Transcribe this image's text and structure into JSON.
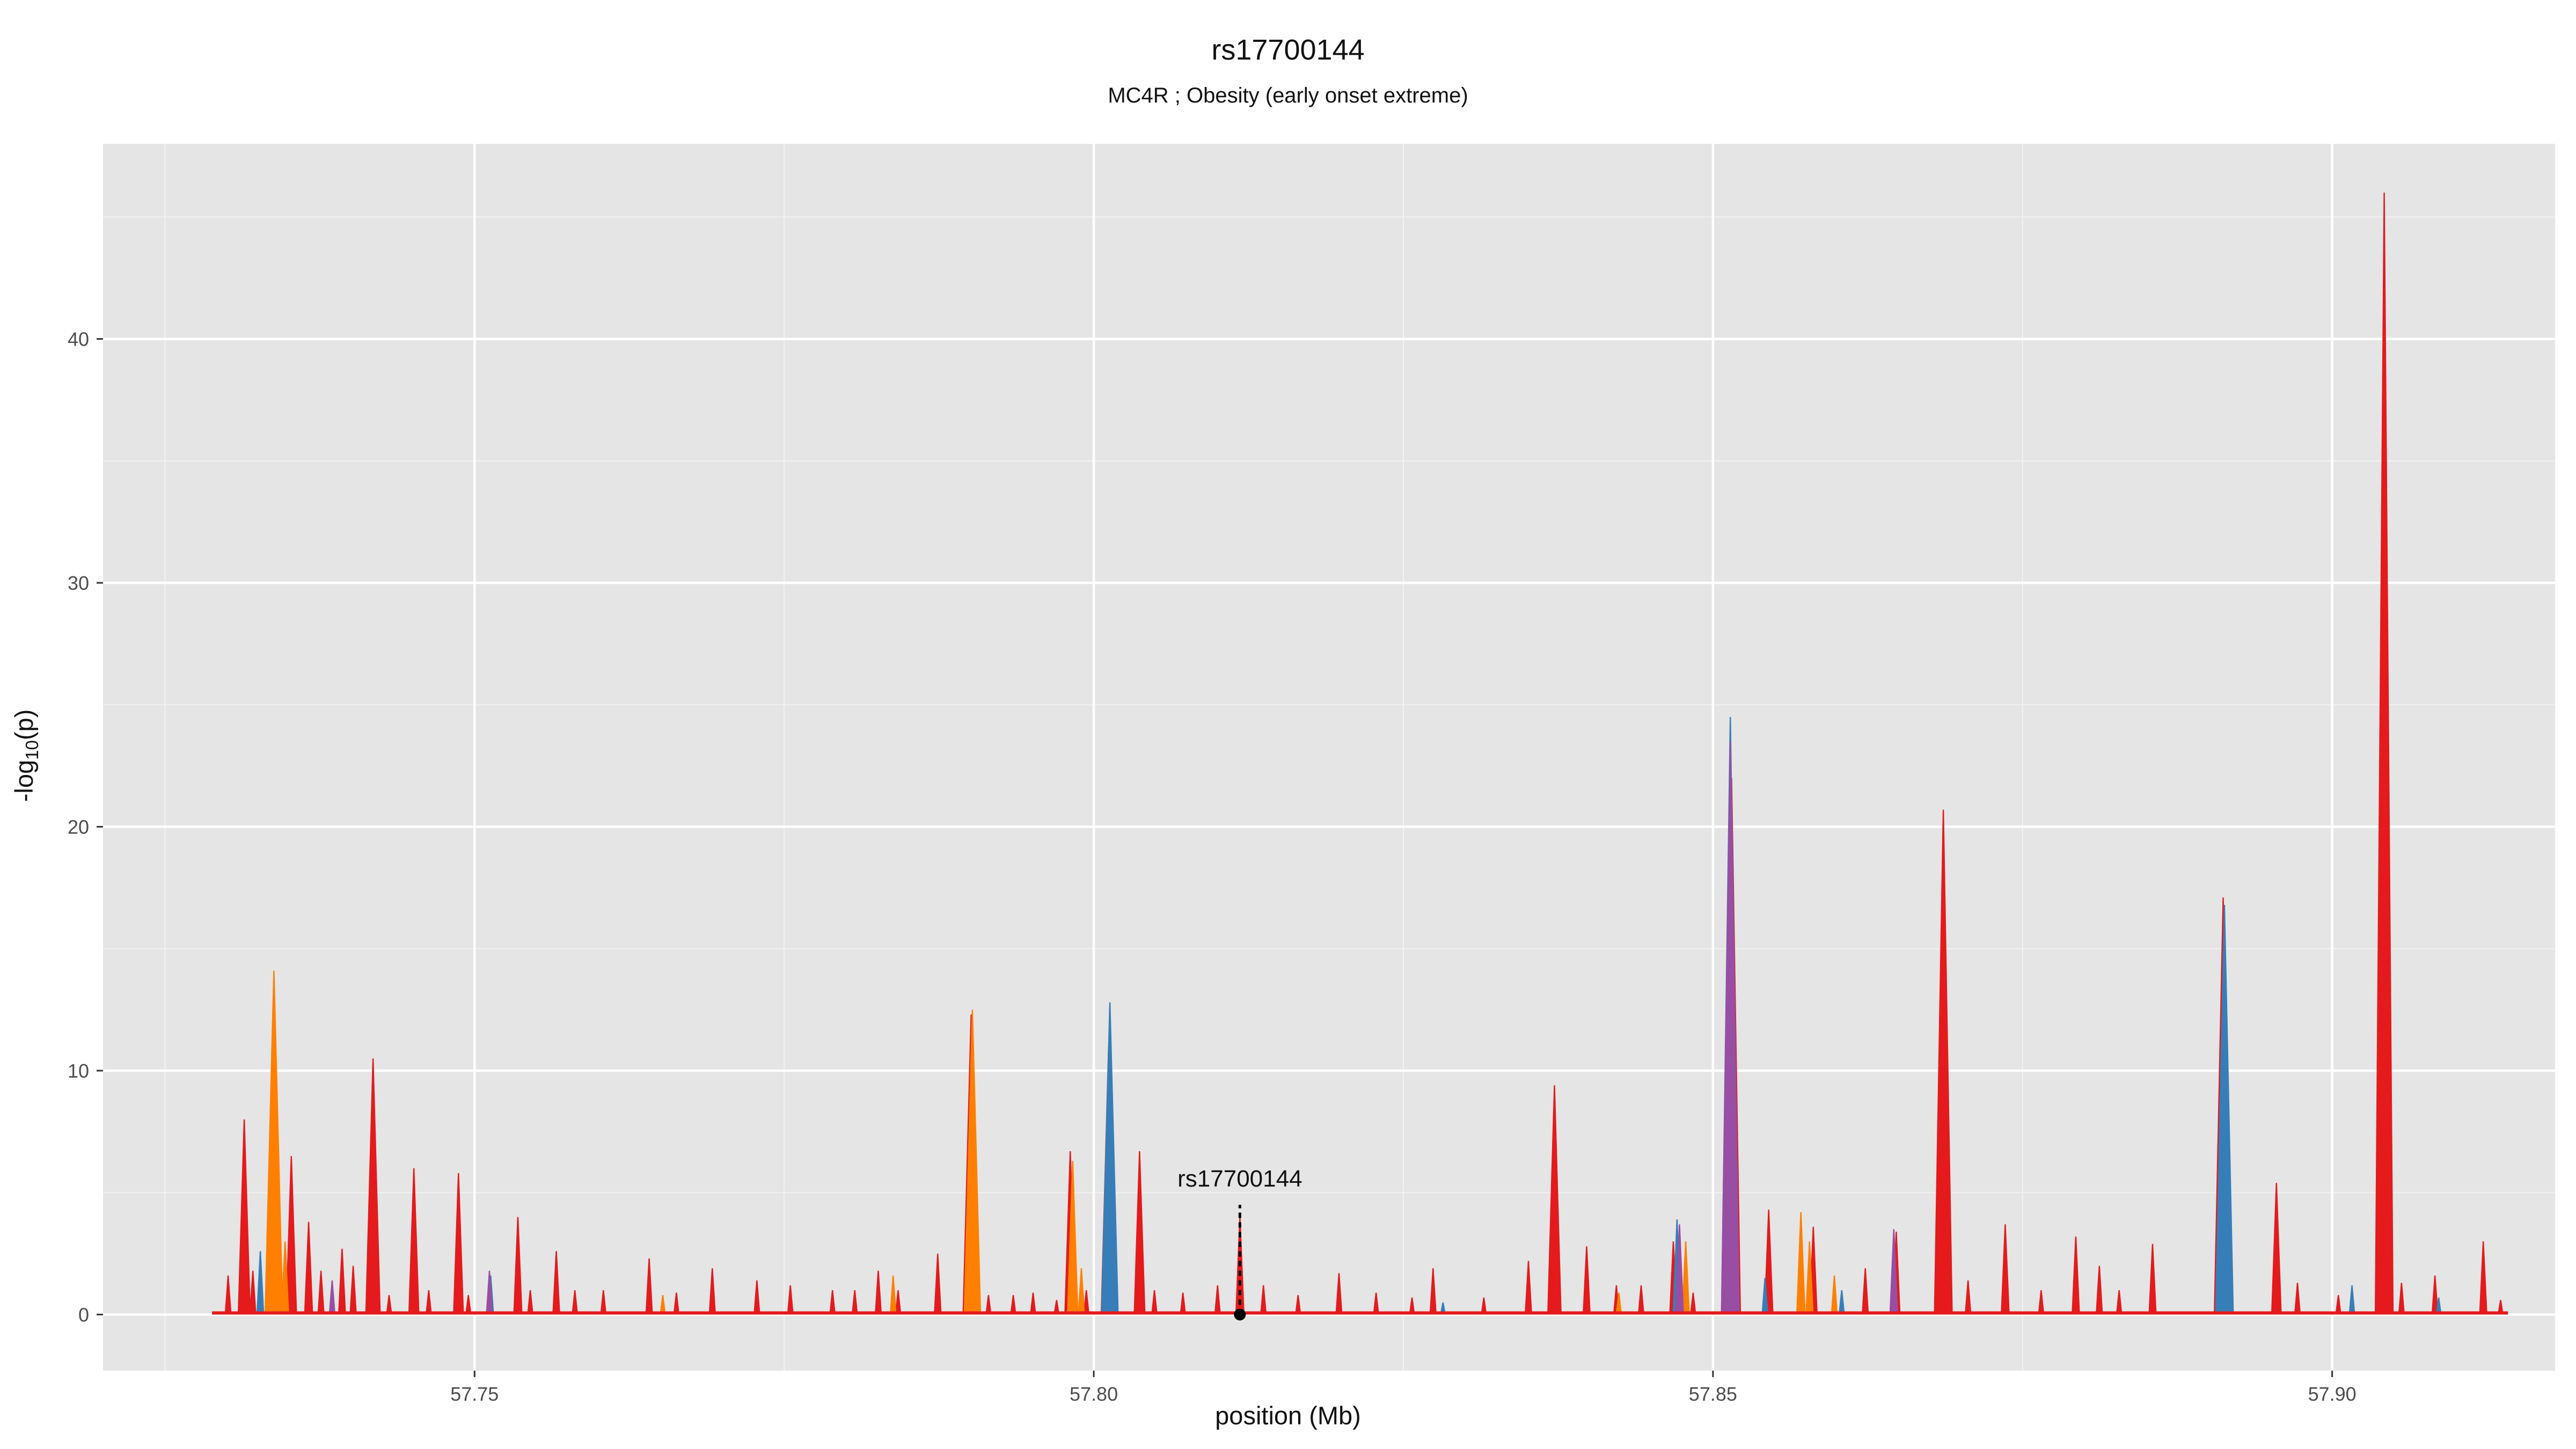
{
  "chart_data": {
    "type": "area",
    "title": "rs17700144",
    "subtitle": "MC4R ; Obesity (early onset extreme)",
    "xlabel": "position (Mb)",
    "ylabel_main": "-log",
    "ylabel_sub": "10",
    "ylabel_suffix": "(p)",
    "xlim": [
      57.72,
      57.918
    ],
    "ylim": [
      -2.3,
      48
    ],
    "x_major_ticks": [
      57.75,
      57.8,
      57.85,
      57.9
    ],
    "x_tick_labels": [
      "57.75",
      "57.80",
      "57.85",
      "57.90"
    ],
    "x_minor_ticks": [
      57.725,
      57.775,
      57.825,
      57.875
    ],
    "y_major_ticks": [
      0,
      10,
      20,
      30,
      40
    ],
    "y_tick_labels": [
      "0",
      "10",
      "20",
      "30",
      "40"
    ],
    "y_minor_ticks": [
      5,
      15,
      25,
      35,
      45
    ],
    "grid": true,
    "panel_background": "#e5e5e5",
    "gridline_color": "#ffffff",
    "baseline_start": 57.7288,
    "baseline_end": 57.9142,
    "annotation": {
      "label": "rs17700144",
      "x": 57.8118,
      "y": 4.5
    },
    "series": [
      {
        "color": "#e41a1c",
        "peaks": [
          [
            57.7301,
            1.6
          ],
          [
            57.7314,
            8.0
          ],
          [
            57.7321,
            1.8
          ],
          [
            57.7352,
            6.5
          ],
          [
            57.7366,
            3.8
          ],
          [
            57.7376,
            1.8
          ],
          [
            57.7393,
            2.7
          ],
          [
            57.7402,
            2.0
          ],
          [
            57.7418,
            10.5
          ],
          [
            57.7431,
            0.8
          ],
          [
            57.7451,
            6.0
          ],
          [
            57.7463,
            1.0
          ],
          [
            57.7487,
            5.8
          ],
          [
            57.7495,
            0.8
          ],
          [
            57.7535,
            4.0
          ],
          [
            57.7545,
            1.0
          ],
          [
            57.7566,
            2.6
          ],
          [
            57.7581,
            1.0
          ],
          [
            57.7604,
            1.0
          ],
          [
            57.7641,
            2.3
          ],
          [
            57.7663,
            0.9
          ],
          [
            57.7692,
            1.9
          ],
          [
            57.7728,
            1.4
          ],
          [
            57.7755,
            1.2
          ],
          [
            57.7789,
            1.0
          ],
          [
            57.7807,
            1.0
          ],
          [
            57.7826,
            1.8
          ],
          [
            57.7842,
            1.0
          ],
          [
            57.7874,
            2.5
          ],
          [
            57.7901,
            12.3
          ],
          [
            57.7915,
            0.8
          ],
          [
            57.7935,
            0.8
          ],
          [
            57.7951,
            0.9
          ],
          [
            57.797,
            0.6
          ],
          [
            57.7981,
            6.7
          ],
          [
            57.7994,
            1.0
          ],
          [
            57.8012,
            11.0
          ],
          [
            57.8037,
            6.7
          ],
          [
            57.8049,
            1.0
          ],
          [
            57.8072,
            0.9
          ],
          [
            57.81,
            1.2
          ],
          [
            57.8118,
            4.0
          ],
          [
            57.8137,
            1.2
          ],
          [
            57.8165,
            0.8
          ],
          [
            57.8198,
            1.7
          ],
          [
            57.8228,
            0.9
          ],
          [
            57.8257,
            0.7
          ],
          [
            57.8274,
            1.9
          ],
          [
            57.8315,
            0.7
          ],
          [
            57.8351,
            2.2
          ],
          [
            57.8372,
            9.4
          ],
          [
            57.8398,
            2.8
          ],
          [
            57.8422,
            1.2
          ],
          [
            57.8442,
            1.2
          ],
          [
            57.8468,
            3.0
          ],
          [
            57.8484,
            0.9
          ],
          [
            57.8515,
            22.0
          ],
          [
            57.8545,
            4.3
          ],
          [
            57.8581,
            3.6
          ],
          [
            57.8623,
            1.9
          ],
          [
            57.8648,
            3.4
          ],
          [
            57.8686,
            20.7
          ],
          [
            57.8706,
            1.4
          ],
          [
            57.8736,
            3.7
          ],
          [
            57.8765,
            1.0
          ],
          [
            57.8793,
            3.2
          ],
          [
            57.8812,
            2.0
          ],
          [
            57.8828,
            1.0
          ],
          [
            57.8855,
            2.9
          ],
          [
            57.8912,
            17.1
          ],
          [
            57.8955,
            5.4
          ],
          [
            57.8972,
            1.3
          ],
          [
            57.9005,
            0.8
          ],
          [
            57.9042,
            46.0
          ],
          [
            57.9056,
            1.3
          ],
          [
            57.9083,
            1.6
          ],
          [
            57.9122,
            3.0
          ],
          [
            57.9136,
            0.6
          ]
        ]
      },
      {
        "color": "#ff7f00",
        "peaks": [
          [
            57.7338,
            14.1
          ],
          [
            57.7347,
            3.0
          ],
          [
            57.7652,
            0.8
          ],
          [
            57.7838,
            1.6
          ],
          [
            57.7902,
            12.5
          ],
          [
            57.7983,
            6.3
          ],
          [
            57.799,
            1.9
          ],
          [
            57.8424,
            0.9
          ],
          [
            57.8478,
            3.0
          ],
          [
            57.8571,
            4.2
          ],
          [
            57.8578,
            3.0
          ],
          [
            57.8598,
            1.6
          ]
        ]
      },
      {
        "color": "#377eb8",
        "peaks": [
          [
            57.7327,
            2.6
          ],
          [
            57.7513,
            1.6
          ],
          [
            57.8013,
            12.8
          ],
          [
            57.8282,
            0.5
          ],
          [
            57.8471,
            3.9
          ],
          [
            57.8514,
            24.5
          ],
          [
            57.8542,
            1.5
          ],
          [
            57.8604,
            1.0
          ],
          [
            57.8913,
            16.8
          ],
          [
            57.9016,
            1.2
          ],
          [
            57.9086,
            0.7
          ]
        ]
      },
      {
        "color": "#984ea3",
        "peaks": [
          [
            57.7385,
            1.4
          ],
          [
            57.7512,
            1.8
          ],
          [
            57.8473,
            3.7
          ],
          [
            57.8514,
            23.5
          ],
          [
            57.8646,
            3.5
          ]
        ]
      }
    ]
  }
}
